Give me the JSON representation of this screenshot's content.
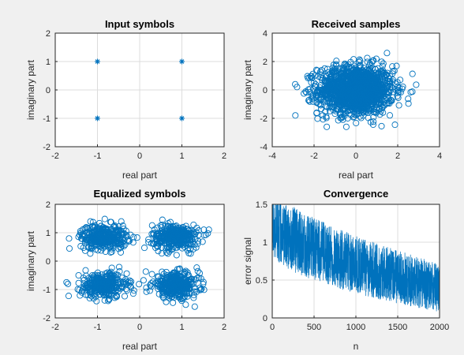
{
  "figure": {
    "background": "#f0f0f0",
    "axes_background": "#ffffff",
    "series_color": "#0072bd"
  },
  "chart_data": [
    {
      "type": "scatter",
      "marker": "asterisk",
      "title": "Input symbols",
      "xlabel": "real part",
      "ylabel": "imaginary part",
      "xlim": [
        -2,
        2
      ],
      "ylim": [
        -2,
        2
      ],
      "xticks": [
        "-2",
        "-1",
        "0",
        "1",
        "2"
      ],
      "yticks": [
        "-2",
        "-1",
        "0",
        "1",
        "2"
      ],
      "grid": true,
      "points": [
        [
          -1,
          1
        ],
        [
          1,
          1
        ],
        [
          -1,
          -1
        ],
        [
          1,
          -1
        ]
      ]
    },
    {
      "type": "scatter",
      "marker": "circle",
      "title": "Received samples",
      "xlabel": "real part",
      "ylabel": "imaginary part",
      "xlim": [
        -4,
        4
      ],
      "ylim": [
        -4,
        4
      ],
      "xticks": [
        "-4",
        "-2",
        "0",
        "2",
        "4"
      ],
      "yticks": [
        "-4",
        "-2",
        "0",
        "2",
        "4"
      ],
      "grid": true,
      "cloud": {
        "center": [
          0,
          0
        ],
        "spread": [
          0.9,
          0.85
        ],
        "clip": [
          2.9,
          2.6
        ],
        "count": 1500
      }
    },
    {
      "type": "scatter",
      "marker": "circle",
      "title": "Equalized symbols",
      "xlabel": "real part",
      "ylabel": "imaginary part",
      "xlim": [
        -2,
        2
      ],
      "ylim": [
        -2,
        2
      ],
      "xticks": [
        "-2",
        "-1",
        "0",
        "1",
        "2"
      ],
      "yticks": [
        "-2",
        "-1",
        "0",
        "1",
        "2"
      ],
      "grid": true,
      "clusters": [
        {
          "center": [
            -0.85,
            0.85
          ],
          "spread": 0.22,
          "count": 350
        },
        {
          "center": [
            0.85,
            0.85
          ],
          "spread": 0.22,
          "count": 350
        },
        {
          "center": [
            -0.85,
            -0.85
          ],
          "spread": 0.22,
          "count": 350
        },
        {
          "center": [
            0.85,
            -0.85
          ],
          "spread": 0.22,
          "count": 350
        }
      ]
    },
    {
      "type": "line",
      "title": "Convergence",
      "xlabel": "n",
      "ylabel": "error signal",
      "xlim": [
        0,
        2000
      ],
      "ylim": [
        0,
        1.5
      ],
      "xticks": [
        "0",
        "500",
        "1000",
        "1500",
        "2000"
      ],
      "yticks": [
        "0",
        "0.5",
        "1",
        "1.5"
      ],
      "grid": true,
      "samples": 2000,
      "envelope": {
        "start_mean": 1.3,
        "end_mean": 0.4,
        "noise": 0.32,
        "clip": [
          0.02,
          1.5
        ]
      }
    }
  ]
}
